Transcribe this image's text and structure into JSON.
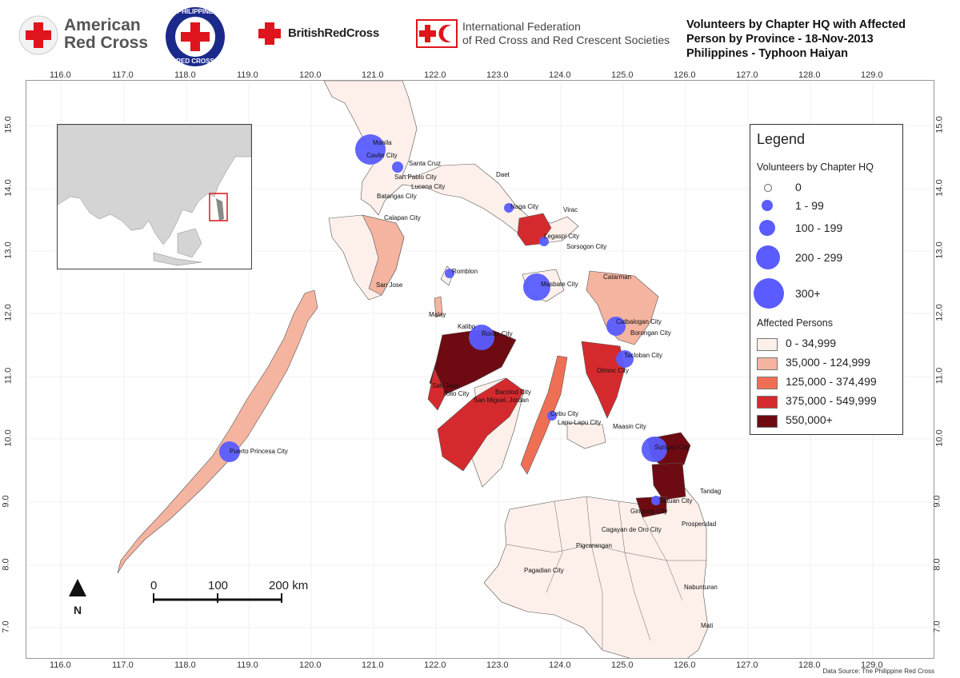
{
  "logos": {
    "american_red_cross_line1": "American",
    "american_red_cross_line2": "Red Cross",
    "philippine_red_cross_top": "PHILIPPINE",
    "philippine_red_cross_bottom": "RED CROSS",
    "british_red_cross": "BritishRedCross",
    "ifrc_line1": "International Federation",
    "ifrc_line2": "of Red Cross and Red Crescent Societies"
  },
  "title": {
    "line1": "Volunteers by Chapter HQ with Affected",
    "line2": "Person by Province - 18-Nov-2013",
    "line3": "Philippines - Typhoon Haiyan"
  },
  "axes": {
    "lon_ticks": [
      "116.0",
      "117.0",
      "118.0",
      "119.0",
      "120.0",
      "121.0",
      "122.0",
      "123.0",
      "124.0",
      "125.0",
      "126.0",
      "127.0",
      "128.0",
      "129.0"
    ],
    "lat_ticks": [
      "15.0",
      "14.0",
      "13.0",
      "12.0",
      "11.0",
      "10.0",
      "9.0",
      "8.0",
      "7.0"
    ]
  },
  "legend": {
    "title": "Legend",
    "volunteers_heading": "Volunteers by Chapter HQ",
    "volunteer_classes": [
      "0",
      "1 - 99",
      "100 - 199",
      "200 - 299",
      "300+"
    ],
    "affected_heading": "Affected Persons",
    "affected_classes": [
      {
        "label": "0 - 34,999",
        "color": "#fdf0ea"
      },
      {
        "label": "35,000 - 124,999",
        "color": "#f4b4a0"
      },
      {
        "label": "125,000 - 374,499",
        "color": "#ef6f55"
      },
      {
        "label": "375,000 - 549,999",
        "color": "#d42a2e"
      },
      {
        "label": "550,000+",
        "color": "#6e0b12"
      }
    ]
  },
  "cities": [
    {
      "name": "Manila"
    },
    {
      "name": "Cavite City"
    },
    {
      "name": "Santa Cruz"
    },
    {
      "name": "San Pablo City"
    },
    {
      "name": "Lucena City"
    },
    {
      "name": "Batangas City"
    },
    {
      "name": "Calapan City"
    },
    {
      "name": "Daet"
    },
    {
      "name": "Naga City"
    },
    {
      "name": "Virac"
    },
    {
      "name": "Legaspi City"
    },
    {
      "name": "Sorsogon City"
    },
    {
      "name": "Romblon"
    },
    {
      "name": "Masbate City"
    },
    {
      "name": "Catarman"
    },
    {
      "name": "San Jose"
    },
    {
      "name": "Malay"
    },
    {
      "name": "Kalibo"
    },
    {
      "name": "Roxas City"
    },
    {
      "name": "Catbalogan City"
    },
    {
      "name": "Borongan City"
    },
    {
      "name": "Tacloban City"
    },
    {
      "name": "Ormoc City"
    },
    {
      "name": "San Jose"
    },
    {
      "name": "Iloilo City"
    },
    {
      "name": "Bacolod City"
    },
    {
      "name": "San Miguel, Jordan"
    },
    {
      "name": "Cebu City"
    },
    {
      "name": "Lapu-Lapu City"
    },
    {
      "name": "Maasin City"
    },
    {
      "name": "Surigao City"
    },
    {
      "name": "Puerto Princesa City"
    },
    {
      "name": "Tandag"
    },
    {
      "name": "Butuan City"
    },
    {
      "name": "Gingoog City"
    },
    {
      "name": "Prosperidad"
    },
    {
      "name": "Cagayan de Oro City"
    },
    {
      "name": "Pigcarangan"
    },
    {
      "name": "Pagadian City"
    },
    {
      "name": "Nabunturan"
    },
    {
      "name": "Mati"
    }
  ],
  "scale_bar": {
    "labels": [
      "0",
      "100",
      "200 km"
    ]
  },
  "north_arrow": {
    "label": "N"
  },
  "source": "Data Source: The Philippine Red Cross",
  "colors": {
    "red_cross": "#e0141c",
    "volunteer_circle": "#5a5cff",
    "land": "#fdf0ea"
  }
}
